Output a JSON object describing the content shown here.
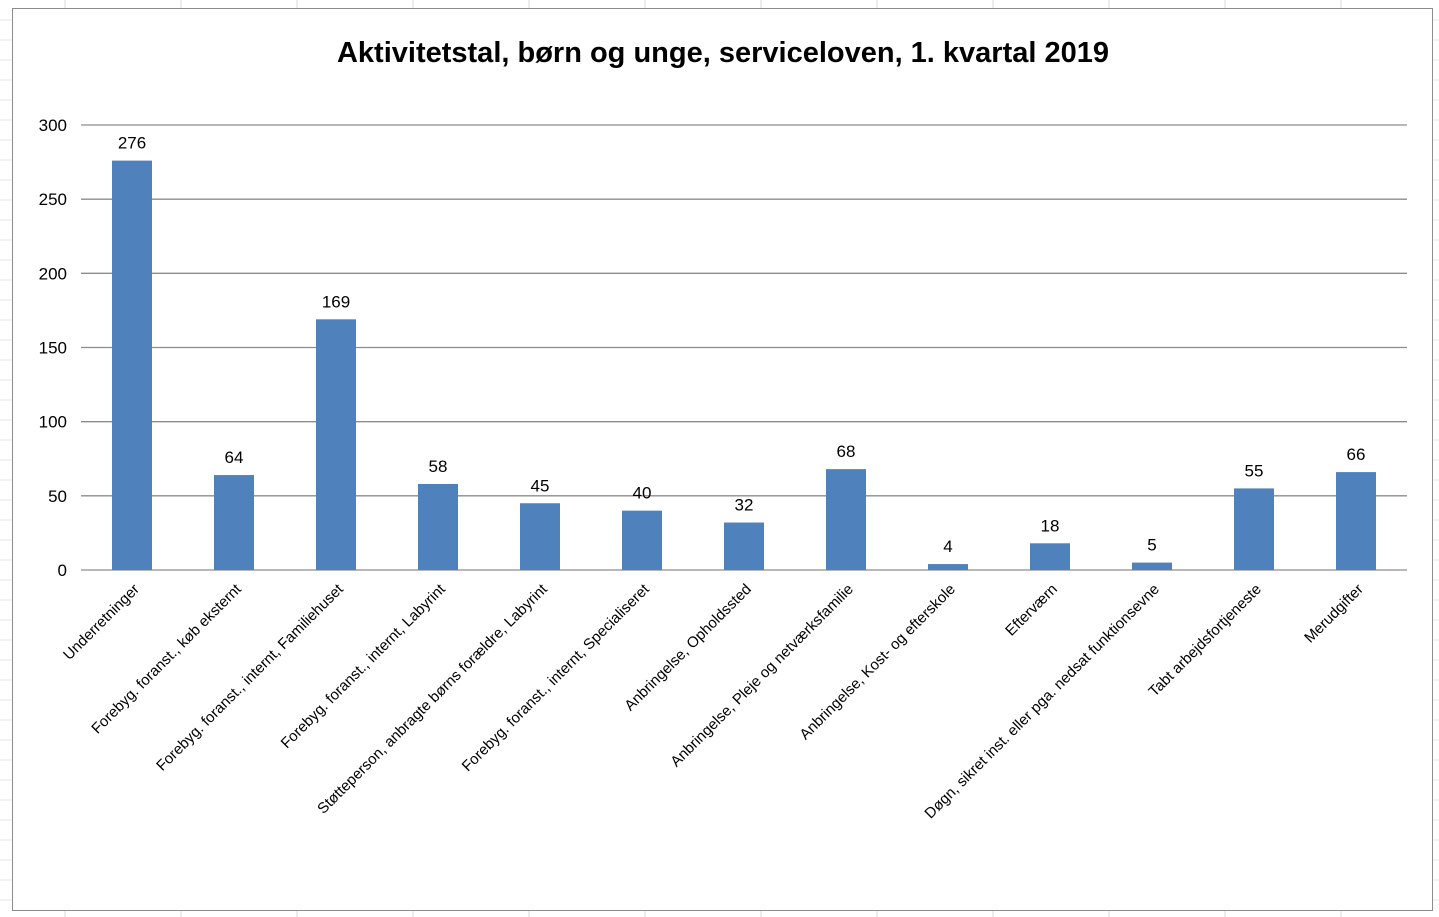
{
  "chart_data": {
    "type": "bar",
    "title": "Aktivitetstal, børn og unge, serviceloven, 1. kvartal 2019",
    "xlabel": "",
    "ylabel": "",
    "ylim": [
      0,
      300
    ],
    "yticks": [
      0,
      50,
      100,
      150,
      200,
      250,
      300
    ],
    "grid": true,
    "legend": "none",
    "bar_color": "#4f81bd",
    "categories": [
      "Underretninger",
      "Forebyg. foranst., køb eksternt",
      "Forebyg. foranst., internt, Familiehuset",
      "Forebyg. foranst., internt, Labyrint",
      "Støtteperson, anbragte børns forældre, Labyrint",
      "Forebyg. foranst., internt, Specialiseret",
      "Anbringelse, Opholdssted",
      "Anbringelse, Pleje og netværksfamilie",
      "Anbringelse, Kost- og efterskole",
      "Efterværn",
      "Døgn, sikret inst. eller pga. nedsat funktionsevne",
      "Tabt arbejdsfortjeneste",
      "Merudgifter"
    ],
    "values": [
      276,
      64,
      169,
      58,
      45,
      40,
      32,
      68,
      4,
      18,
      5,
      55,
      66
    ]
  }
}
